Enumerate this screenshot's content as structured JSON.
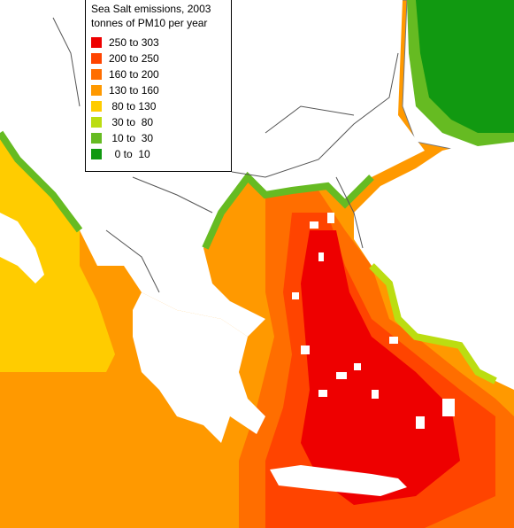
{
  "legend": {
    "title": "Sea Salt emissions, 2003",
    "subtitle": "tonnes of PM10 per year",
    "items": [
      {
        "label": "250 to 303",
        "color": "#ee0000"
      },
      {
        "label": "200 to 250",
        "color": "#ff4400"
      },
      {
        "label": "160 to 200",
        "color": "#ff6e00"
      },
      {
        "label": "130 to 160",
        "color": "#ff9900"
      },
      {
        "label": " 80 to 130",
        "color": "#ffcc00"
      },
      {
        "label": " 30 to  80",
        "color": "#bbdd11"
      },
      {
        "label": " 10 to  30",
        "color": "#66bb22"
      },
      {
        "label": "  0 to  10",
        "color": "#119911"
      }
    ]
  },
  "colors": {
    "land": "#ffffff",
    "border": "#555555"
  }
}
